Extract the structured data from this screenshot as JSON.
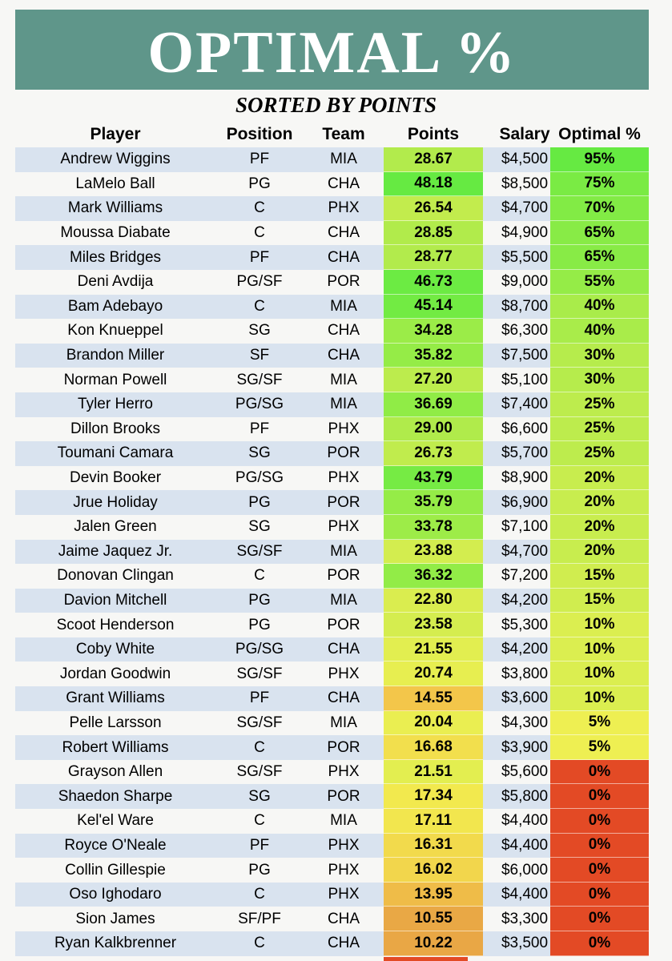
{
  "title": "OPTIMAL %",
  "subtitle": "SORTED BY POINTS",
  "headers": {
    "player": "Player",
    "position": "Position",
    "team": "Team",
    "points": "Points",
    "salary": "Salary",
    "optimal": "Optimal %"
  },
  "rows": [
    {
      "player": "Andrew Wiggins",
      "position": "PF",
      "team": "MIA",
      "points": "28.67",
      "salary": "$4,500",
      "optimal": "95%",
      "points_color": "#b2eb4c",
      "optimal_color": "#66ea42"
    },
    {
      "player": "LaMelo Ball",
      "position": "PG",
      "team": "CHA",
      "points": "48.18",
      "salary": "$8,500",
      "optimal": "75%",
      "points_color": "#66ea42",
      "optimal_color": "#7aeb44"
    },
    {
      "player": "Mark Williams",
      "position": "C",
      "team": "PHX",
      "points": "26.54",
      "salary": "$4,700",
      "optimal": "70%",
      "points_color": "#c2ec4d",
      "optimal_color": "#82eb45"
    },
    {
      "player": "Moussa Diabate",
      "position": "C",
      "team": "CHA",
      "points": "28.85",
      "salary": "$4,900",
      "optimal": "65%",
      "points_color": "#b1eb4b",
      "optimal_color": "#88eb46"
    },
    {
      "player": "Miles Bridges",
      "position": "PF",
      "team": "CHA",
      "points": "28.77",
      "salary": "$5,500",
      "optimal": "65%",
      "points_color": "#b2eb4c",
      "optimal_color": "#88eb46"
    },
    {
      "player": "Deni Avdija",
      "position": "PG/SF",
      "team": "POR",
      "points": "46.73",
      "salary": "$9,000",
      "optimal": "55%",
      "points_color": "#6ceb43",
      "optimal_color": "#95ec47"
    },
    {
      "player": "Bam Adebayo",
      "position": "C",
      "team": "MIA",
      "points": "45.14",
      "salary": "$8,700",
      "optimal": "40%",
      "points_color": "#72eb43",
      "optimal_color": "#a9ec4a"
    },
    {
      "player": "Kon Knueppel",
      "position": "SG",
      "team": "CHA",
      "points": "34.28",
      "salary": "$6,300",
      "optimal": "40%",
      "points_color": "#9bec48",
      "optimal_color": "#a9ec4a"
    },
    {
      "player": "Brandon Miller",
      "position": "SF",
      "team": "CHA",
      "points": "35.82",
      "salary": "$7,500",
      "optimal": "30%",
      "points_color": "#95ec47",
      "optimal_color": "#b6ec4c"
    },
    {
      "player": "Norman Powell",
      "position": "SG/SF",
      "team": "MIA",
      "points": "27.20",
      "salary": "$5,100",
      "optimal": "30%",
      "points_color": "#bcec4d",
      "optimal_color": "#b6ec4c"
    },
    {
      "player": "Tyler Herro",
      "position": "PG/SG",
      "team": "MIA",
      "points": "36.69",
      "salary": "$7,400",
      "optimal": "25%",
      "points_color": "#90ec46",
      "optimal_color": "#bdec4d"
    },
    {
      "player": "Dillon Brooks",
      "position": "PF",
      "team": "PHX",
      "points": "29.00",
      "salary": "$6,600",
      "optimal": "25%",
      "points_color": "#b0eb4b",
      "optimal_color": "#bdec4d"
    },
    {
      "player": "Toumani Camara",
      "position": "SG",
      "team": "POR",
      "points": "26.73",
      "salary": "$5,700",
      "optimal": "25%",
      "points_color": "#c0ec4d",
      "optimal_color": "#bdec4d"
    },
    {
      "player": "Devin Booker",
      "position": "PG/SG",
      "team": "PHX",
      "points": "43.79",
      "salary": "$8,900",
      "optimal": "20%",
      "points_color": "#76eb44",
      "optimal_color": "#c8ed4e"
    },
    {
      "player": "Jrue Holiday",
      "position": "PG",
      "team": "POR",
      "points": "35.79",
      "salary": "$6,900",
      "optimal": "20%",
      "points_color": "#95ec47",
      "optimal_color": "#c8ed4e"
    },
    {
      "player": "Jalen Green",
      "position": "SG",
      "team": "PHX",
      "points": "33.78",
      "salary": "$7,100",
      "optimal": "20%",
      "points_color": "#9dec48",
      "optimal_color": "#c8ed4e"
    },
    {
      "player": "Jaime Jaquez Jr.",
      "position": "SG/SF",
      "team": "MIA",
      "points": "23.88",
      "salary": "$4,700",
      "optimal": "20%",
      "points_color": "#d3ed4f",
      "optimal_color": "#c8ed4e"
    },
    {
      "player": "Donovan Clingan",
      "position": "C",
      "team": "POR",
      "points": "36.32",
      "salary": "$7,200",
      "optimal": "15%",
      "points_color": "#92ec47",
      "optimal_color": "#d0ed4f"
    },
    {
      "player": "Davion Mitchell",
      "position": "PG",
      "team": "MIA",
      "points": "22.80",
      "salary": "$4,200",
      "optimal": "15%",
      "points_color": "#daed4f",
      "optimal_color": "#d0ed4f"
    },
    {
      "player": "Scoot Henderson",
      "position": "PG",
      "team": "POR",
      "points": "23.58",
      "salary": "$5,300",
      "optimal": "10%",
      "points_color": "#d5ed4f",
      "optimal_color": "#dbee50"
    },
    {
      "player": "Coby White",
      "position": "PG/SG",
      "team": "CHA",
      "points": "21.55",
      "salary": "$4,200",
      "optimal": "10%",
      "points_color": "#e2ee50",
      "optimal_color": "#dbee50"
    },
    {
      "player": "Jordan Goodwin",
      "position": "SG/SF",
      "team": "PHX",
      "points": "20.74",
      "salary": "$3,800",
      "optimal": "10%",
      "points_color": "#e7ee50",
      "optimal_color": "#dbee50"
    },
    {
      "player": "Grant Williams",
      "position": "PF",
      "team": "CHA",
      "points": "14.55",
      "salary": "$3,600",
      "optimal": "10%",
      "points_color": "#f3c64a",
      "optimal_color": "#dbee50"
    },
    {
      "player": "Pelle Larsson",
      "position": "SG/SF",
      "team": "MIA",
      "points": "20.04",
      "salary": "$4,300",
      "optimal": "5%",
      "points_color": "#eaee51",
      "optimal_color": "#eeef52"
    },
    {
      "player": "Robert Williams",
      "position": "C",
      "team": "POR",
      "points": "16.68",
      "salary": "$3,900",
      "optimal": "5%",
      "points_color": "#f2df4d",
      "optimal_color": "#eeef52"
    },
    {
      "player": "Grayson Allen",
      "position": "SG/SF",
      "team": "PHX",
      "points": "21.51",
      "salary": "$5,600",
      "optimal": "0%",
      "points_color": "#e3ee50",
      "optimal_color": "#e34a25"
    },
    {
      "player": "Shaedon Sharpe",
      "position": "SG",
      "team": "POR",
      "points": "17.34",
      "salary": "$5,800",
      "optimal": "0%",
      "points_color": "#f2e94e",
      "optimal_color": "#e34a25"
    },
    {
      "player": "Kel'el Ware",
      "position": "C",
      "team": "MIA",
      "points": "17.11",
      "salary": "$4,400",
      "optimal": "0%",
      "points_color": "#f2e64e",
      "optimal_color": "#e34a25"
    },
    {
      "player": "Royce O'Neale",
      "position": "PF",
      "team": "PHX",
      "points": "16.31",
      "salary": "$4,400",
      "optimal": "0%",
      "points_color": "#f2da4c",
      "optimal_color": "#e34a25"
    },
    {
      "player": "Collin Gillespie",
      "position": "PG",
      "team": "PHX",
      "points": "16.02",
      "salary": "$6,000",
      "optimal": "0%",
      "points_color": "#f2d64c",
      "optimal_color": "#e34a25"
    },
    {
      "player": "Oso Ighodaro",
      "position": "C",
      "team": "PHX",
      "points": "13.95",
      "salary": "$4,400",
      "optimal": "0%",
      "points_color": "#efbc48",
      "optimal_color": "#e34a25"
    },
    {
      "player": "Sion James",
      "position": "SF/PF",
      "team": "CHA",
      "points": "10.55",
      "salary": "$3,300",
      "optimal": "0%",
      "points_color": "#e9a845",
      "optimal_color": "#e34a25"
    },
    {
      "player": "Ryan Kalkbrenner",
      "position": "C",
      "team": "CHA",
      "points": "10.22",
      "salary": "$3,500",
      "optimal": "0%",
      "points_color": "#e9a745",
      "optimal_color": "#e34a25"
    }
  ]
}
